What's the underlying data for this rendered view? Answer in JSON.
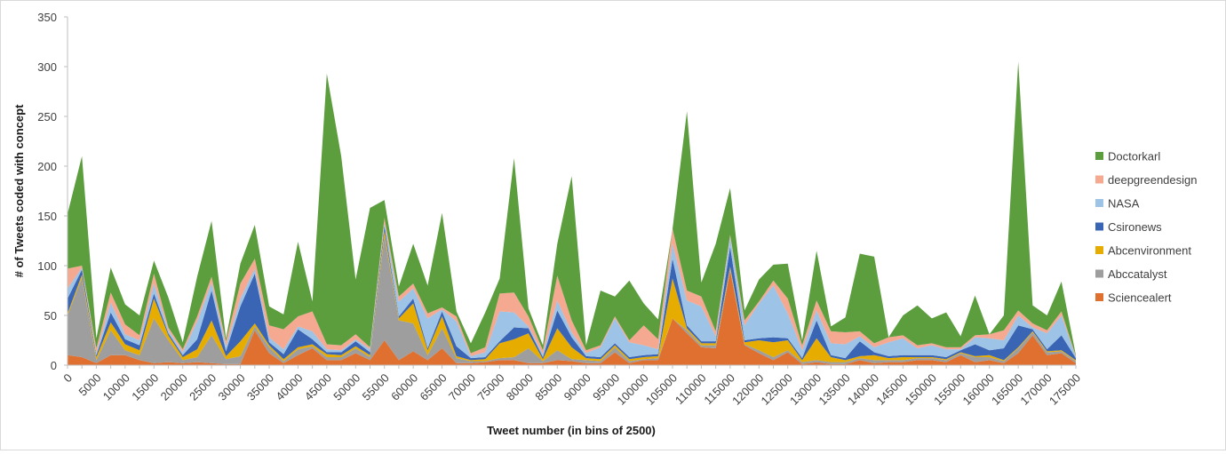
{
  "chart_data": {
    "type": "area",
    "stacked": true,
    "xlabel": "Tweet number (in bins of 2500)",
    "ylabel": "# of Tweets coded with concept",
    "ylim": [
      0,
      350
    ],
    "yticks": [
      0,
      50,
      100,
      150,
      200,
      250,
      300,
      350
    ],
    "x": [
      0,
      2500,
      5000,
      7500,
      10000,
      12500,
      15000,
      17500,
      20000,
      22500,
      25000,
      27500,
      30000,
      32500,
      35000,
      37500,
      40000,
      42500,
      45000,
      47500,
      50000,
      52500,
      55000,
      57500,
      60000,
      62500,
      65000,
      67500,
      70000,
      72500,
      75000,
      77500,
      80000,
      82500,
      85000,
      87500,
      90000,
      92500,
      95000,
      97500,
      100000,
      102500,
      105000,
      107500,
      110000,
      112500,
      115000,
      117500,
      120000,
      122500,
      125000,
      127500,
      130000,
      132500,
      135000,
      137500,
      140000,
      142500,
      145000,
      147500,
      150000,
      152500,
      155000,
      157500,
      160000,
      162500,
      165000,
      167500,
      170000,
      172500,
      175000
    ],
    "xtick_labels": [
      "0",
      "5000",
      "10000",
      "15000",
      "20000",
      "25000",
      "30000",
      "35000",
      "40000",
      "45000",
      "50000",
      "55000",
      "60000",
      "65000",
      "70000",
      "75000",
      "80000",
      "85000",
      "90000",
      "95000",
      "100000",
      "105000",
      "110000",
      "115000",
      "120000",
      "125000",
      "130000",
      "135000",
      "140000",
      "145000",
      "150000",
      "155000",
      "160000",
      "165000",
      "170000",
      "175000"
    ],
    "legend_position": "right",
    "grid": false,
    "series": [
      {
        "name": "Sciencealert",
        "color": "#e07030",
        "values": [
          10,
          8,
          2,
          10,
          10,
          5,
          2,
          3,
          2,
          3,
          2,
          1,
          1,
          35,
          12,
          2,
          10,
          17,
          5,
          5,
          12,
          5,
          25,
          5,
          14,
          5,
          17,
          2,
          2,
          3,
          5,
          5,
          2,
          2,
          5,
          4,
          2,
          2,
          13,
          2,
          5,
          5,
          47,
          32,
          18,
          17,
          95,
          20,
          12,
          5,
          13,
          1,
          3,
          1,
          1,
          5,
          2,
          3,
          3,
          5,
          5,
          3,
          10,
          3,
          5,
          2,
          12,
          30,
          10,
          12,
          2
        ]
      },
      {
        "name": "Abccatalyst",
        "color": "#9e9e9e",
        "values": [
          40,
          80,
          3,
          25,
          5,
          5,
          45,
          22,
          3,
          5,
          28,
          5,
          8,
          4,
          6,
          2,
          6,
          2,
          3,
          3,
          5,
          3,
          105,
          40,
          28,
          5,
          20,
          5,
          2,
          1,
          2,
          3,
          15,
          2,
          10,
          2,
          3,
          2,
          5,
          2,
          1,
          2,
          0,
          3,
          2,
          3,
          2,
          1,
          3,
          3,
          2,
          2,
          2,
          2,
          2,
          2,
          3,
          2,
          2,
          2,
          2,
          2,
          2,
          5,
          3,
          2,
          5,
          3,
          3,
          2,
          2
        ]
      },
      {
        "name": "Abcenvironment",
        "color": "#e6ac00",
        "values": [
          2,
          3,
          3,
          8,
          6,
          5,
          20,
          5,
          3,
          8,
          15,
          3,
          15,
          3,
          2,
          2,
          2,
          2,
          3,
          2,
          2,
          2,
          5,
          2,
          20,
          5,
          12,
          2,
          1,
          2,
          15,
          18,
          15,
          2,
          22,
          12,
          2,
          2,
          2,
          2,
          2,
          2,
          40,
          2,
          2,
          2,
          2,
          2,
          10,
          15,
          10,
          2,
          22,
          5,
          2,
          2,
          5,
          2,
          3,
          1,
          1,
          1,
          1,
          1,
          2,
          1,
          1,
          1,
          1,
          1,
          1
        ]
      },
      {
        "name": "Csironews",
        "color": "#3a64b4",
        "values": [
          15,
          5,
          2,
          10,
          5,
          5,
          5,
          2,
          2,
          10,
          30,
          5,
          35,
          50,
          3,
          5,
          18,
          5,
          2,
          3,
          5,
          3,
          5,
          2,
          5,
          2,
          5,
          10,
          2,
          2,
          2,
          12,
          5,
          2,
          18,
          10,
          2,
          2,
          2,
          2,
          2,
          2,
          20,
          3,
          2,
          2,
          20,
          2,
          2,
          5,
          2,
          2,
          18,
          2,
          2,
          15,
          3,
          2,
          2,
          2,
          2,
          2,
          2,
          12,
          5,
          12,
          22,
          2,
          2,
          15,
          2
        ]
      },
      {
        "name": "NASA",
        "color": "#9dc3e6",
        "values": [
          10,
          2,
          2,
          10,
          5,
          5,
          10,
          3,
          3,
          18,
          8,
          5,
          8,
          5,
          5,
          5,
          3,
          8,
          3,
          2,
          2,
          3,
          3,
          15,
          10,
          30,
          2,
          25,
          2,
          5,
          30,
          15,
          2,
          3,
          10,
          5,
          3,
          10,
          25,
          15,
          10,
          5,
          15,
          25,
          35,
          5,
          10,
          15,
          35,
          52,
          25,
          8,
          10,
          12,
          14,
          5,
          5,
          14,
          17,
          7,
          10,
          8,
          1,
          7,
          12,
          8,
          10,
          2,
          16,
          20,
          1
        ]
      },
      {
        "name": "deepgreendesign",
        "color": "#f4a990",
        "values": [
          20,
          2,
          5,
          10,
          10,
          5,
          10,
          3,
          3,
          5,
          6,
          5,
          15,
          10,
          12,
          20,
          10,
          20,
          5,
          5,
          5,
          2,
          5,
          5,
          5,
          5,
          2,
          5,
          3,
          5,
          18,
          20,
          10,
          4,
          25,
          12,
          3,
          2,
          2,
          2,
          20,
          10,
          15,
          10,
          10,
          5,
          2,
          5,
          2,
          5,
          15,
          5,
          10,
          12,
          12,
          5,
          4,
          5,
          3,
          3,
          2,
          2,
          2,
          2,
          4,
          10,
          5,
          4,
          3,
          4,
          1
        ]
      },
      {
        "name": "Doctorkarl",
        "color": "#5c9e3e",
        "values": [
          55,
          110,
          10,
          25,
          20,
          20,
          13,
          30,
          7,
          40,
          56,
          3,
          20,
          34,
          19,
          15,
          75,
          10,
          272,
          190,
          55,
          140,
          18,
          10,
          40,
          28,
          95,
          5,
          10,
          35,
          15,
          135,
          8,
          5,
          32,
          145,
          5,
          55,
          20,
          60,
          22,
          20,
          0,
          180,
          14,
          88,
          47,
          10,
          22,
          16,
          35,
          5,
          50,
          5,
          15,
          78,
          87,
          0,
          20,
          40,
          25,
          35,
          11,
          40,
          0,
          15,
          250,
          18,
          15,
          30,
          1
        ]
      }
    ]
  }
}
